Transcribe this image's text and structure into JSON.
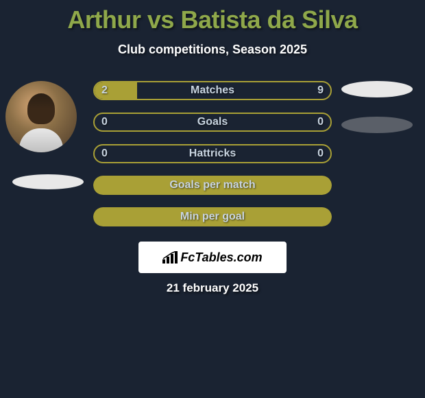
{
  "header": {
    "title": "Arthur vs Batista da Silva",
    "subtitle": "Club competitions, Season 2025"
  },
  "colors": {
    "background": "#1a2332",
    "title_color": "#8fa84a",
    "text_color": "#ffffff",
    "bar_fill": "#a9a036",
    "bar_label": "#c8d4e0",
    "pill_light": "#e8e8e8",
    "pill_dark": "#5a5f68"
  },
  "stats": [
    {
      "label": "Matches",
      "left_value": "2",
      "right_value": "9",
      "fill_pct": 18,
      "has_values": true
    },
    {
      "label": "Goals",
      "left_value": "0",
      "right_value": "0",
      "fill_pct": 0,
      "has_values": true
    },
    {
      "label": "Hattricks",
      "left_value": "0",
      "right_value": "0",
      "fill_pct": 0,
      "has_values": true
    },
    {
      "label": "Goals per match",
      "left_value": "",
      "right_value": "",
      "fill_pct": 100,
      "has_values": false
    },
    {
      "label": "Min per goal",
      "left_value": "",
      "right_value": "",
      "fill_pct": 100,
      "has_values": false
    }
  ],
  "branding": {
    "logo_text": "FcTables.com"
  },
  "footer": {
    "date": "21 february 2025"
  },
  "typography": {
    "title_fontsize": 36,
    "subtitle_fontsize": 18,
    "stat_label_fontsize": 16,
    "date_fontsize": 17
  }
}
